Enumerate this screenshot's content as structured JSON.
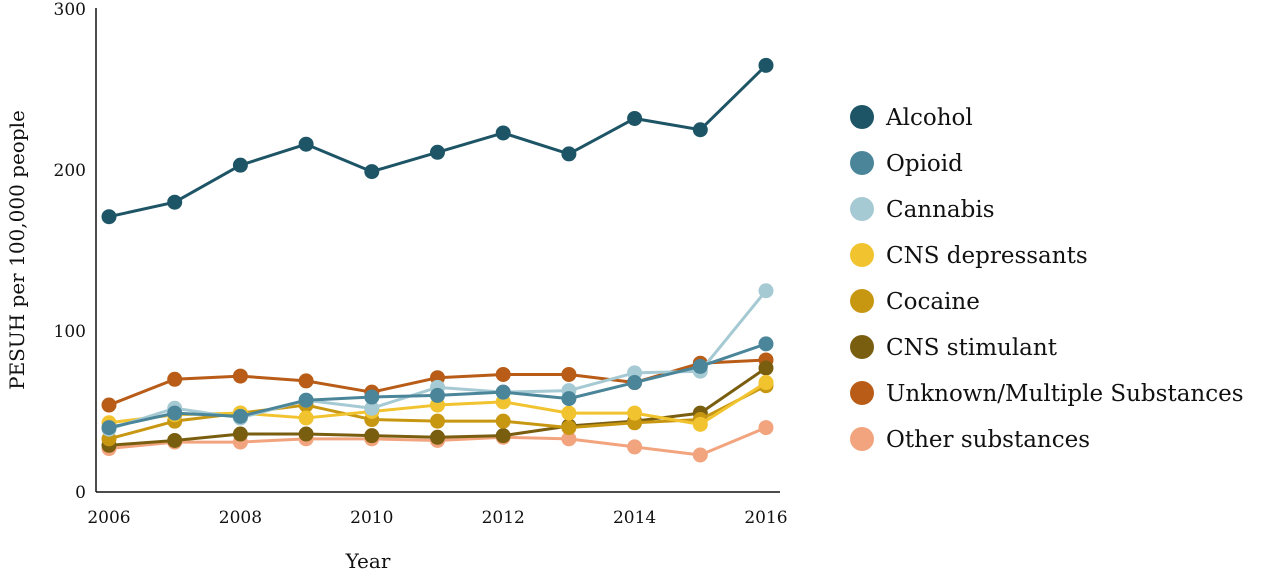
{
  "chart_data": {
    "type": "line",
    "title": "",
    "xlabel": "Year",
    "ylabel": "PESUH per 100,000 people",
    "x": [
      2006,
      2007,
      2008,
      2009,
      2010,
      2011,
      2012,
      2013,
      2014,
      2015,
      2016
    ],
    "x_ticks": [
      "2006",
      "2008",
      "2010",
      "2012",
      "2014",
      "2016"
    ],
    "y_ticks": [
      "0",
      "100",
      "200",
      "300"
    ],
    "xlim": [
      2006,
      2016
    ],
    "ylim": [
      0,
      300
    ],
    "grid": false,
    "legend_position": "right",
    "series": [
      {
        "name": "Alcohol",
        "color": "#1d5566",
        "values": [
          171,
          180,
          203,
          216,
          199,
          211,
          223,
          210,
          232,
          225,
          265
        ]
      },
      {
        "name": "Opioid",
        "color": "#4a8599",
        "values": [
          40,
          49,
          47,
          57,
          59,
          60,
          62,
          58,
          68,
          78,
          92
        ]
      },
      {
        "name": "Cannabis",
        "color": "#a6cad3",
        "values": [
          39,
          52,
          46,
          57,
          52,
          65,
          62,
          63,
          74,
          75,
          125
        ]
      },
      {
        "name": "CNS depressants",
        "color": "#f1c32e",
        "values": [
          43,
          48,
          49,
          46,
          50,
          54,
          56,
          49,
          49,
          42,
          68
        ]
      },
      {
        "name": "Cocaine",
        "color": "#c89712",
        "values": [
          33,
          44,
          49,
          54,
          45,
          44,
          44,
          40,
          43,
          45,
          66
        ]
      },
      {
        "name": "CNS stimulant",
        "color": "#7a5e10",
        "values": [
          29,
          32,
          36,
          36,
          35,
          34,
          35,
          41,
          44,
          49,
          77
        ]
      },
      {
        "name": "Unknown/Multiple Substances",
        "color": "#b85c18",
        "values": [
          54,
          70,
          72,
          69,
          62,
          71,
          73,
          73,
          68,
          80,
          82
        ]
      },
      {
        "name": "Other substances",
        "color": "#f2a47e",
        "values": [
          27,
          31,
          31,
          33,
          33,
          32,
          34,
          33,
          28,
          23,
          40
        ]
      }
    ]
  }
}
